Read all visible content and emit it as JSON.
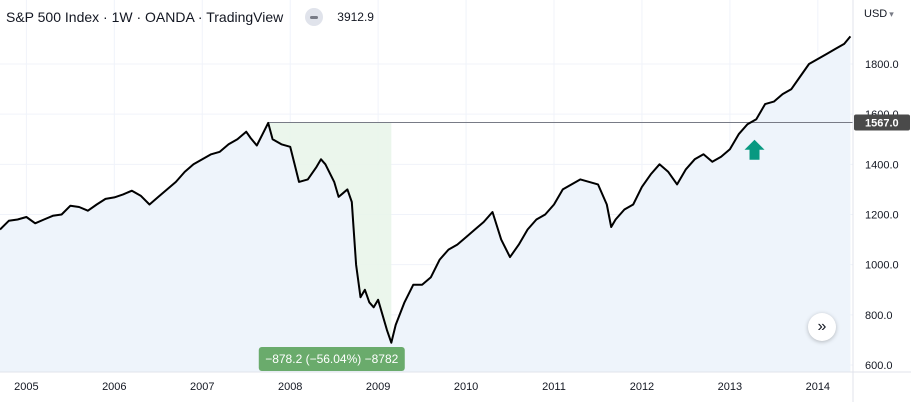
{
  "header": {
    "title": "S&P 500 Index · 1W · OANDA · TradingView",
    "last_value": "3912.9"
  },
  "price_axis": {
    "currency": "USD"
  },
  "colors": {
    "line": "#000000",
    "area_fill": "#eef4fb",
    "measure_zone": "#e8f5e9",
    "measure_label_bg": "#6aab6c",
    "arrow": "#089981",
    "price_marker_bg": "#4a4a4a"
  },
  "price_marker": {
    "label": "1567.0",
    "value": 1567
  },
  "measurement": {
    "label": "−878.2 (−56.04%) −8782",
    "from_date": "2007.75",
    "to_date": "2009.15",
    "high": 1567,
    "low": 689
  },
  "signal_arrow": {
    "date": 2013.28,
    "value": 1450,
    "direction": "up",
    "icon": "arrow-up-icon"
  },
  "chart_data": {
    "type": "line",
    "title": "",
    "xlabel": "",
    "ylabel": "",
    "x_ticks": [
      2005,
      2006,
      2007,
      2008,
      2009,
      2010,
      2011,
      2012,
      2013,
      2014
    ],
    "x_tick_labels": [
      "2005",
      "2006",
      "2007",
      "2008",
      "2009",
      "2010",
      "2011",
      "2012",
      "2013",
      "2014"
    ],
    "y_ticks": [
      600,
      800,
      1000,
      1200,
      1400,
      1600,
      1800
    ],
    "y_tick_labels": [
      "600.0",
      "800.0",
      "1000.0",
      "1200.0",
      "1400.0",
      "1600.0",
      "1800.0"
    ],
    "xlim": [
      2004.7,
      2014.4
    ],
    "ylim": [
      560,
      1920
    ],
    "series": [
      {
        "x": [
          2004.7,
          2004.8,
          2004.9,
          2005.0,
          2005.1,
          2005.2,
          2005.3,
          2005.4,
          2005.5,
          2005.6,
          2005.7,
          2005.8,
          2005.9,
          2006.0,
          2006.1,
          2006.2,
          2006.3,
          2006.4,
          2006.5,
          2006.6,
          2006.7,
          2006.8,
          2006.9,
          2007.0,
          2007.1,
          2007.2,
          2007.3,
          2007.4,
          2007.5,
          2007.55,
          2007.62,
          2007.7,
          2007.75,
          2007.8,
          2007.9,
          2008.0,
          2008.05,
          2008.1,
          2008.2,
          2008.3,
          2008.35,
          2008.4,
          2008.5,
          2008.55,
          2008.6,
          2008.65,
          2008.7,
          2008.72,
          2008.75,
          2008.8,
          2008.85,
          2008.9,
          2008.95,
          2009.0,
          2009.05,
          2009.1,
          2009.15,
          2009.2,
          2009.3,
          2009.4,
          2009.5,
          2009.6,
          2009.7,
          2009.8,
          2009.9,
          2010.0,
          2010.1,
          2010.2,
          2010.3,
          2010.4,
          2010.5,
          2010.6,
          2010.7,
          2010.8,
          2010.9,
          2011.0,
          2011.1,
          2011.2,
          2011.3,
          2011.4,
          2011.5,
          2011.6,
          2011.65,
          2011.7,
          2011.8,
          2011.9,
          2012.0,
          2012.1,
          2012.2,
          2012.3,
          2012.4,
          2012.5,
          2012.6,
          2012.7,
          2012.8,
          2012.9,
          2013.0,
          2013.1,
          2013.2,
          2013.3,
          2013.4,
          2013.5,
          2013.6,
          2013.7,
          2013.8,
          2013.9,
          2014.0,
          2014.1,
          2014.2,
          2014.3,
          2014.37
        ],
        "y": [
          1140,
          1175,
          1180,
          1190,
          1165,
          1180,
          1195,
          1200,
          1235,
          1230,
          1215,
          1240,
          1262,
          1268,
          1280,
          1295,
          1275,
          1240,
          1270,
          1300,
          1330,
          1370,
          1400,
          1420,
          1440,
          1450,
          1480,
          1500,
          1530,
          1505,
          1475,
          1530,
          1565,
          1500,
          1480,
          1470,
          1400,
          1330,
          1340,
          1390,
          1420,
          1400,
          1330,
          1270,
          1285,
          1300,
          1250,
          1150,
          1000,
          870,
          900,
          850,
          830,
          860,
          800,
          740,
          689,
          760,
          850,
          920,
          920,
          950,
          1020,
          1060,
          1080,
          1110,
          1140,
          1170,
          1210,
          1100,
          1030,
          1080,
          1140,
          1180,
          1200,
          1240,
          1300,
          1320,
          1340,
          1330,
          1320,
          1240,
          1150,
          1180,
          1220,
          1240,
          1310,
          1360,
          1400,
          1370,
          1320,
          1380,
          1420,
          1440,
          1410,
          1430,
          1460,
          1520,
          1560,
          1580,
          1640,
          1650,
          1680,
          1700,
          1750,
          1800,
          1820,
          1840,
          1860,
          1880,
          1910
        ]
      }
    ]
  }
}
